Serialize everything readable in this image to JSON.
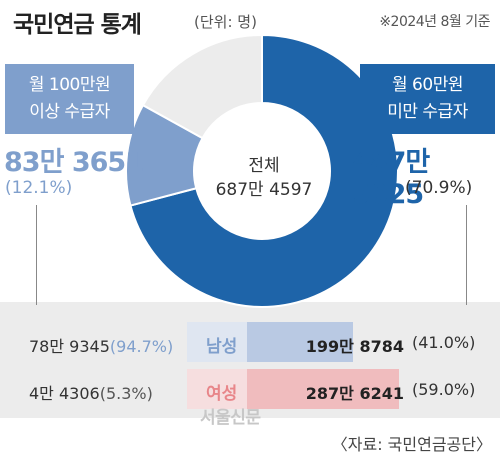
{
  "header": {
    "title": "국민연금 통계",
    "unit": "(단위: 명)",
    "date_note": "※2024년 8월 기준"
  },
  "chart_data": [
    {
      "type": "pie",
      "center_label": {
        "line1": "전체",
        "line2": "687만 4597"
      },
      "slices": [
        {
          "name_line1": "월 60만원",
          "name_line2": "미만 수급자",
          "value_text": "487만 5025",
          "pct_text": "(70.9%)",
          "value": 4875025,
          "color": "#1e64a9"
        },
        {
          "name_line1": "월 100만원",
          "name_line2": "이상 수급자",
          "value_text": "83만 3651",
          "pct_text": "(12.1%)",
          "value": 833651,
          "color": "#7f9fcc"
        },
        {
          "name": "",
          "value": 1165921,
          "color": "#ececec"
        }
      ]
    },
    {
      "type": "bar",
      "categories": [
        "남성",
        "여성"
      ],
      "category_colors": [
        "#7f9fcc",
        "#e8868a"
      ],
      "left_series": [
        {
          "value_text": "78만 9345",
          "pct_text": "(94.7%)"
        },
        {
          "value_text": "4만 4306",
          "pct_text": "(5.3%)"
        }
      ],
      "right_series": [
        {
          "value_text": "199만 8784",
          "pct_text": "(41.0%)",
          "value": 41.0,
          "color": "#b9c9e3"
        },
        {
          "value_text": "287만 6241",
          "pct_text": "(59.0%)",
          "value": 59.0,
          "color": "#f0bcbe"
        }
      ]
    }
  ],
  "footer": {
    "brand": "서울신문",
    "source": "〈자료: 국민연금공단〉"
  }
}
